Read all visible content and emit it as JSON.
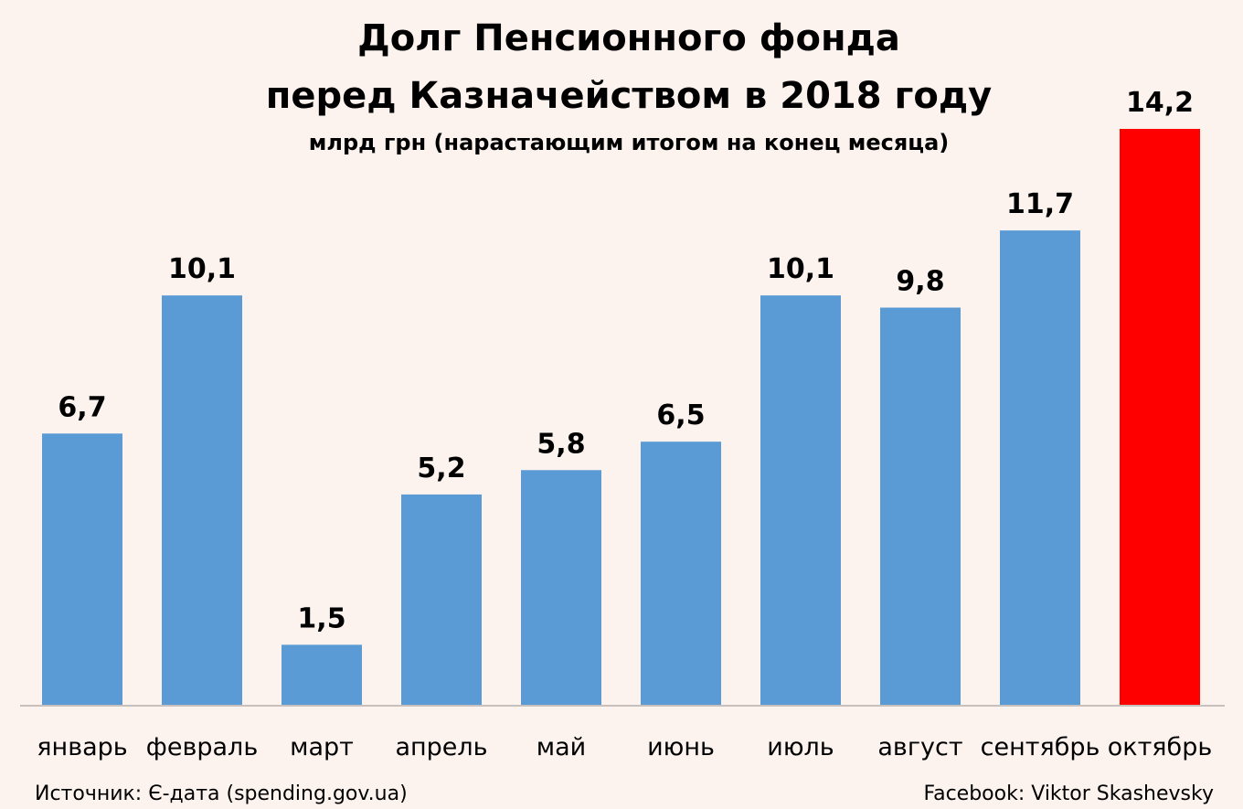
{
  "chart_data": {
    "type": "bar",
    "title_lines": [
      "Долг Пенсионного фонда",
      "перед Казначейством в 2018 году"
    ],
    "subtitle": "млрд грн (нарастающим итогом на конец месяца)",
    "categories": [
      "январь",
      "февраль",
      "март",
      "апрель",
      "май",
      "июнь",
      "июль",
      "август",
      "сентябрь",
      "октябрь"
    ],
    "values": [
      6.7,
      10.1,
      1.5,
      5.2,
      5.8,
      6.5,
      10.1,
      9.8,
      11.7,
      14.2
    ],
    "value_labels": [
      "6,7",
      "10,1",
      "1,5",
      "5,2",
      "5,8",
      "6,5",
      "10,1",
      "9,8",
      "11,7",
      "14,2"
    ],
    "bar_color": "#5b9bd5",
    "highlight_color": "#ff0000",
    "highlight_index": 9,
    "ylim": [
      0,
      14.2
    ],
    "grid": false,
    "legend": "none"
  },
  "footer": {
    "source": "Источник: Є-дата (spending.gov.ua)",
    "credit": "Facebook: Viktor Skashevsky"
  }
}
